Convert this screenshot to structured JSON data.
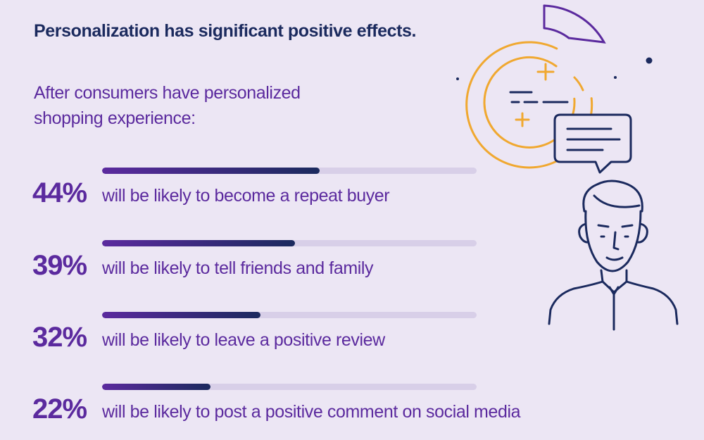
{
  "header": {
    "title": "Personalization has significant positive effects.",
    "subtitle": "After consumers have personalized shopping experience:"
  },
  "colors": {
    "background": "#ece6f4",
    "title": "#1b2a5e",
    "accent_purple": "#5b2a9e",
    "accent_navy": "#1b2a5e",
    "bar_track": "#d8cfe8",
    "illustration_orange": "#f0a830"
  },
  "chart_data": {
    "type": "bar",
    "orientation": "horizontal",
    "xlim": [
      0,
      100
    ],
    "categories": [
      "will be likely to become a repeat buyer",
      "will be likely to tell friends and family",
      "will be likely to leave a positive review",
      "will be likely to post a positive comment on social media"
    ],
    "values": [
      44,
      39,
      32,
      22
    ],
    "value_labels": [
      "44%",
      "39%",
      "32%",
      "22%"
    ],
    "grid": false,
    "legend": "none"
  },
  "illustration": {
    "icons": [
      "donut-chart-icon",
      "plus-icon",
      "minus-icon",
      "speech-bubble-icon",
      "person-icon"
    ]
  }
}
